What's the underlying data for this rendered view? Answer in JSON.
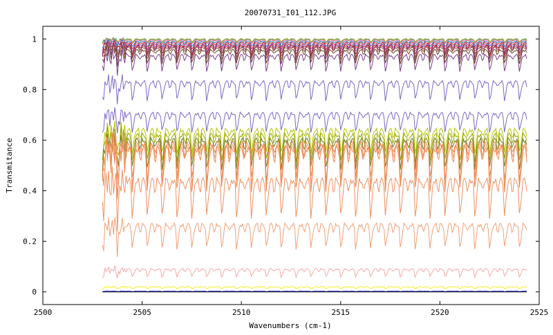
{
  "chart_data": {
    "type": "line",
    "title": "20070731_I01_112.JPG",
    "xlabel": "Wavenumbers (cm-1)",
    "ylabel": "Transmitance",
    "xlim": [
      2500,
      2525
    ],
    "ylim": [
      -0.05,
      1.05
    ],
    "xticks": [
      2500,
      2505,
      2510,
      2515,
      2520,
      2525
    ],
    "xtick_labels": [
      "2500",
      "2505",
      "2510",
      "2515",
      "2520",
      "2525"
    ],
    "yticks": [
      0,
      0.2,
      0.4,
      0.6,
      0.8,
      1
    ],
    "ytick_labels": [
      "0",
      "0.2",
      "0.4",
      "0.6",
      "0.8",
      "1"
    ],
    "grid": false,
    "legend": "none",
    "x_range_of_data": [
      2503.0,
      2524.4
    ],
    "line_spacing_cm1": 0.75,
    "series": [
      {
        "baseline": 1.0,
        "depth": 0.012,
        "color": "#2ca02c"
      },
      {
        "baseline": 0.999,
        "depth": 0.012,
        "color": "#ff7f0e"
      },
      {
        "baseline": 0.998,
        "depth": 0.014,
        "color": "#17becf"
      },
      {
        "baseline": 0.997,
        "depth": 0.014,
        "color": "#bcbd22"
      },
      {
        "baseline": 0.995,
        "depth": 0.015,
        "color": "#e377c2"
      },
      {
        "baseline": 0.99,
        "depth": 0.02,
        "color": "#1f77b4"
      },
      {
        "baseline": 0.985,
        "depth": 0.025,
        "color": "#d62728"
      },
      {
        "baseline": 0.98,
        "depth": 0.03,
        "color": "#9467bd"
      },
      {
        "baseline": 0.975,
        "depth": 0.035,
        "color": "#8b1a3a"
      },
      {
        "baseline": 0.97,
        "depth": 0.04,
        "color": "#b03060"
      },
      {
        "baseline": 0.965,
        "depth": 0.045,
        "color": "#8c564b"
      },
      {
        "baseline": 0.955,
        "depth": 0.05,
        "color": "#6b4226"
      },
      {
        "baseline": 0.935,
        "depth": 0.06,
        "color": "#7b3f8c"
      },
      {
        "baseline": 0.83,
        "depth": 0.07,
        "color": "#7b68c8"
      },
      {
        "baseline": 0.705,
        "depth": 0.07,
        "color": "#7b68c8"
      },
      {
        "baseline": 0.64,
        "depth": 0.09,
        "color": "#b5c400"
      },
      {
        "baseline": 0.62,
        "depth": 0.1,
        "color": "#9aa800"
      },
      {
        "baseline": 0.6,
        "depth": 0.11,
        "color": "#6b7a1f"
      },
      {
        "baseline": 0.585,
        "depth": 0.14,
        "color": "#e8824a"
      },
      {
        "baseline": 0.575,
        "depth": 0.15,
        "color": "#f0a070"
      },
      {
        "baseline": 0.565,
        "depth": 0.16,
        "color": "#f08850"
      },
      {
        "baseline": 0.44,
        "depth": 0.14,
        "color": "#f09060"
      },
      {
        "baseline": 0.265,
        "depth": 0.09,
        "color": "#f0a078"
      },
      {
        "baseline": 0.09,
        "depth": 0.03,
        "color": "#f4a8a8"
      },
      {
        "baseline": 0.02,
        "depth": 0.008,
        "color": "#f0f020"
      },
      {
        "baseline": 0.003,
        "depth": 0.002,
        "color": "#1a1ad0"
      },
      {
        "baseline": 0.0,
        "depth": 0.0,
        "color": "#000000"
      }
    ]
  }
}
